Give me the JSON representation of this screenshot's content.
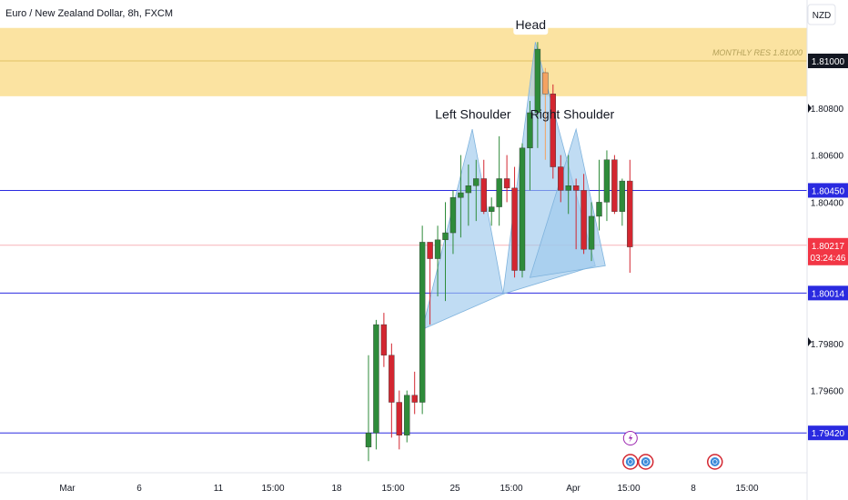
{
  "header": {
    "symbol_title": "Euro / New Zealand Dollar, 8h, FXCM"
  },
  "price_scale": {
    "currency": "NZD"
  },
  "chart_data": {
    "type": "candlestick",
    "title": "Euro / New Zealand Dollar, 8h, FXCM",
    "ylim": [
      1.794,
      1.813
    ],
    "y_ticks": [
      "1.80800",
      "1.80600",
      "1.80400",
      "1.79800",
      "1.79600"
    ],
    "x_ticks": [
      "Mar",
      "6",
      "11",
      "15:00",
      "18",
      "15:00",
      "25",
      "15:00",
      "Apr",
      "15:00",
      "8",
      "15:00"
    ],
    "price_badges": [
      {
        "label": "1.81000",
        "value": 1.81,
        "bg": "#131722",
        "fg": "#ffffff"
      },
      {
        "label": "1.80450",
        "value": 1.8045,
        "bg": "#2a2ae0",
        "fg": "#ffffff"
      },
      {
        "label": "1.80217",
        "value": 1.80217,
        "bg": "#f23645",
        "fg": "#ffffff",
        "sub": "03:24:46"
      },
      {
        "label": "1.80014",
        "value": 1.80014,
        "bg": "#2a2ae0",
        "fg": "#ffffff"
      },
      {
        "label": "1.79420",
        "value": 1.7942,
        "bg": "#2a2ae0",
        "fg": "#ffffff"
      }
    ],
    "zones": [
      {
        "label": "MONTHLY RES 1.81000",
        "from": 1.8085,
        "to": 1.8114,
        "color": "#fbe3a1",
        "mid": 1.81
      }
    ],
    "horizontal_lines": [
      {
        "value": 1.8045,
        "color": "#2a2ae0"
      },
      {
        "value": 1.80014,
        "color": "#2a2ae0"
      },
      {
        "value": 1.7942,
        "color": "#2a2ae0"
      },
      {
        "value": 1.80217,
        "color": "#f7b3b8"
      }
    ],
    "pattern_labels": [
      {
        "text": "Left Shoulder",
        "anchor": "left-shoulder"
      },
      {
        "text": "Head",
        "anchor": "head"
      },
      {
        "text": "Right Shoulder",
        "anchor": "right-shoulder"
      }
    ],
    "colors": {
      "up": "#2e8b3a",
      "down": "#d32630",
      "pattern_fill": "#9ec9ec",
      "head_candle": "#f4a261"
    },
    "candles": [
      {
        "o": 1.7936,
        "h": 1.7975,
        "l": 1.793,
        "c": 1.7942
      },
      {
        "o": 1.7942,
        "h": 1.799,
        "l": 1.7935,
        "c": 1.7988
      },
      {
        "o": 1.7988,
        "h": 1.7993,
        "l": 1.797,
        "c": 1.7975
      },
      {
        "o": 1.7975,
        "h": 1.798,
        "l": 1.794,
        "c": 1.7955
      },
      {
        "o": 1.7955,
        "h": 1.796,
        "l": 1.7935,
        "c": 1.7941
      },
      {
        "o": 1.7941,
        "h": 1.796,
        "l": 1.7938,
        "c": 1.7958
      },
      {
        "o": 1.7958,
        "h": 1.7968,
        "l": 1.795,
        "c": 1.7955
      },
      {
        "o": 1.7955,
        "h": 1.803,
        "l": 1.795,
        "c": 1.8023
      },
      {
        "o": 1.8023,
        "h": 1.8023,
        "l": 1.7988,
        "c": 1.8016
      },
      {
        "o": 1.8016,
        "h": 1.803,
        "l": 1.8,
        "c": 1.8024
      },
      {
        "o": 1.8024,
        "h": 1.804,
        "l": 1.7998,
        "c": 1.8027
      },
      {
        "o": 1.8027,
        "h": 1.8045,
        "l": 1.8018,
        "c": 1.8042
      },
      {
        "o": 1.8042,
        "h": 1.806,
        "l": 1.8025,
        "c": 1.8044
      },
      {
        "o": 1.8044,
        "h": 1.8056,
        "l": 1.803,
        "c": 1.8047
      },
      {
        "o": 1.8047,
        "h": 1.8058,
        "l": 1.8032,
        "c": 1.805
      },
      {
        "o": 1.805,
        "h": 1.8058,
        "l": 1.8035,
        "c": 1.8036
      },
      {
        "o": 1.8036,
        "h": 1.8042,
        "l": 1.803,
        "c": 1.8038
      },
      {
        "o": 1.8038,
        "h": 1.8068,
        "l": 1.803,
        "c": 1.805
      },
      {
        "o": 1.805,
        "h": 1.806,
        "l": 1.804,
        "c": 1.8046
      },
      {
        "o": 1.8046,
        "h": 1.8055,
        "l": 1.8008,
        "c": 1.8011
      },
      {
        "o": 1.8011,
        "h": 1.8065,
        "l": 1.8008,
        "c": 1.8063
      },
      {
        "o": 1.8063,
        "h": 1.8083,
        "l": 1.8045,
        "c": 1.8078
      },
      {
        "o": 1.8078,
        "h": 1.8108,
        "l": 1.8063,
        "c": 1.8105
      },
      {
        "o": 1.8095,
        "h": 1.8097,
        "l": 1.8058,
        "c": 1.8086
      },
      {
        "o": 1.8086,
        "h": 1.809,
        "l": 1.805,
        "c": 1.8055
      },
      {
        "o": 1.8055,
        "h": 1.806,
        "l": 1.804,
        "c": 1.8045
      },
      {
        "o": 1.8045,
        "h": 1.806,
        "l": 1.8035,
        "c": 1.8047
      },
      {
        "o": 1.8047,
        "h": 1.805,
        "l": 1.802,
        "c": 1.8045
      },
      {
        "o": 1.8045,
        "h": 1.8052,
        "l": 1.8018,
        "c": 1.802
      },
      {
        "o": 1.802,
        "h": 1.804,
        "l": 1.8015,
        "c": 1.8034
      },
      {
        "o": 1.8034,
        "h": 1.8058,
        "l": 1.8028,
        "c": 1.804
      },
      {
        "o": 1.804,
        "h": 1.8062,
        "l": 1.8032,
        "c": 1.8058
      },
      {
        "o": 1.8058,
        "h": 1.806,
        "l": 1.8035,
        "c": 1.8036
      },
      {
        "o": 1.8036,
        "h": 1.805,
        "l": 1.803,
        "c": 1.8049
      },
      {
        "o": 1.8049,
        "h": 1.8058,
        "l": 1.801,
        "c": 1.8021
      }
    ],
    "events": [
      {
        "type": "lightning",
        "index": 34,
        "row": 1
      },
      {
        "type": "dividend",
        "index": 34,
        "row": 0
      },
      {
        "type": "dividend",
        "index": 36,
        "row": 0
      },
      {
        "type": "dividend",
        "index": 45,
        "row": 0
      }
    ]
  }
}
